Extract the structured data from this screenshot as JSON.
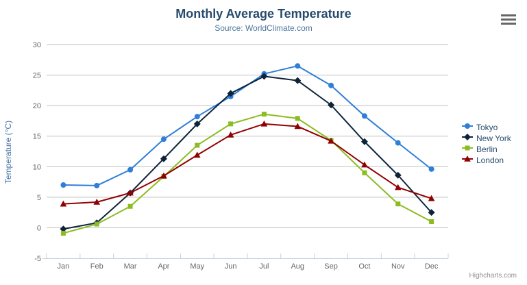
{
  "header": {
    "title": "Monthly Average Temperature",
    "subtitle": "Source: WorldClimate.com"
  },
  "credits_label": "Highcharts.com",
  "context_button_icon": "hamburger-icon",
  "colors": {
    "title": "#274b6d",
    "subtitle": "#4d759e",
    "axis_title": "#4572a7",
    "tick_label": "#666666",
    "gridline": "#c0c0c0",
    "axis_line": "#c0d0e0",
    "legend_text": "#274b6d",
    "credits": "#909090"
  },
  "chart_data": {
    "type": "line",
    "title": "Monthly Average Temperature",
    "subtitle": "Source: WorldClimate.com",
    "xlabel": "",
    "ylabel": "Temperature (°C)",
    "categories": [
      "Jan",
      "Feb",
      "Mar",
      "Apr",
      "May",
      "Jun",
      "Jul",
      "Aug",
      "Sep",
      "Oct",
      "Nov",
      "Dec"
    ],
    "ylim": [
      -5,
      30
    ],
    "ytick_interval": 5,
    "yticks": [
      -5,
      0,
      5,
      10,
      15,
      20,
      25,
      30
    ],
    "grid": true,
    "legend_position": "right",
    "series": [
      {
        "name": "Tokyo",
        "color": "#2f7ed8",
        "marker": "circle",
        "values": [
          7.0,
          6.9,
          9.5,
          14.5,
          18.2,
          21.5,
          25.2,
          26.5,
          23.3,
          18.3,
          13.9,
          9.6
        ]
      },
      {
        "name": "New York",
        "color": "#0d233a",
        "marker": "diamond",
        "values": [
          -0.2,
          0.8,
          5.7,
          11.3,
          17.0,
          22.0,
          24.8,
          24.1,
          20.1,
          14.1,
          8.6,
          2.5
        ]
      },
      {
        "name": "Berlin",
        "color": "#8bbc21",
        "marker": "square",
        "values": [
          -0.9,
          0.6,
          3.5,
          8.4,
          13.5,
          17.0,
          18.6,
          17.9,
          14.3,
          9.0,
          3.9,
          1.0
        ]
      },
      {
        "name": "London",
        "color": "#910000",
        "marker": "triangle",
        "values": [
          3.9,
          4.2,
          5.7,
          8.5,
          11.9,
          15.2,
          17.0,
          16.6,
          14.2,
          10.3,
          6.6,
          4.8
        ]
      }
    ]
  }
}
